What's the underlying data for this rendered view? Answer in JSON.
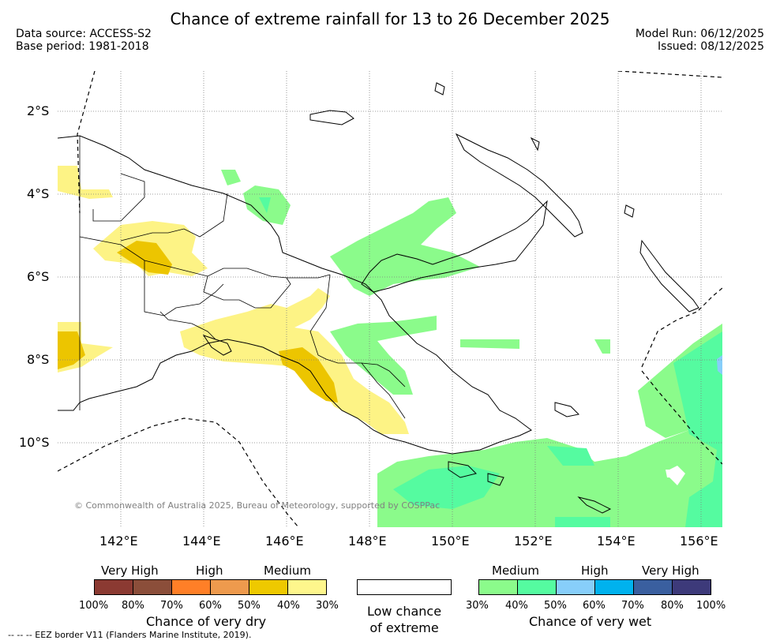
{
  "header": {
    "title": "Chance of extreme rainfall for 13 to 26 December 2025",
    "data_source": "Data source: ACCESS-S2",
    "base_period": "Base period: 1981-2018",
    "model_run": "Model Run: 06/12/2025",
    "issued": "Issued: 08/12/2025"
  },
  "axes": {
    "lat_labels": [
      "2°S",
      "4°S",
      "6°S",
      "8°S",
      "10°S"
    ],
    "lon_labels": [
      "142°E",
      "144°E",
      "146°E",
      "148°E",
      "150°E",
      "152°E",
      "154°E",
      "156°E"
    ]
  },
  "map": {
    "copyright": "© Commonwealth of Australia 2025, Bureau of Meteorology, supported by COSPPac",
    "eez_note": "--  --  -- EEZ border V11 (Flanders Marine Institute, 2019).",
    "colors": {
      "land_outline": "#000000",
      "dry_medium_low": "#fdf385",
      "dry_medium": "#ecc500",
      "wet_medium": "#8bfb8b",
      "wet_medium_high": "#55fba0",
      "wet_high": "#87cefa"
    }
  },
  "legend": {
    "dry": {
      "levels": [
        "Very High",
        "High",
        "Medium"
      ],
      "percents": [
        "100%",
        "80%",
        "70%",
        "60%",
        "50%",
        "40%",
        "30%"
      ],
      "colors": [
        "#8b3a32",
        "#8b4e3a",
        "#ff7f27",
        "#ee9a4d",
        "#eec900",
        "#fef68c"
      ],
      "caption": "Chance of very dry"
    },
    "neutral": {
      "caption_line1": "Low chance",
      "caption_line2": "of extreme",
      "color": "#ffffff"
    },
    "wet": {
      "levels": [
        "Medium",
        "High",
        "Very High"
      ],
      "percents": [
        "30%",
        "40%",
        "50%",
        "60%",
        "70%",
        "80%",
        "100%"
      ],
      "colors": [
        "#8bfb8b",
        "#55fba0",
        "#87cefa",
        "#00b2ee",
        "#3a5f9f",
        "#3d3a7a"
      ],
      "caption": "Chance of very wet"
    }
  }
}
